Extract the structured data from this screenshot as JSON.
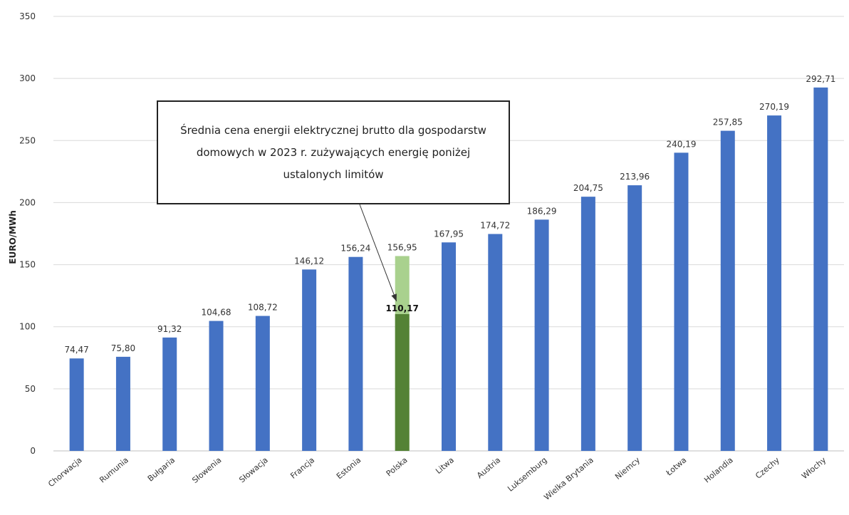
{
  "chart_data": {
    "type": "bar",
    "ylabel": "EURO/MWh",
    "ylim": [
      0,
      350
    ],
    "yticks": [
      "0",
      "50",
      "100",
      "150",
      "200",
      "250",
      "300",
      "350"
    ],
    "grid": true,
    "categories": [
      "Chorwacja",
      "Rumunia",
      "Bułgaria",
      "Słowenia",
      "Słowacja",
      "Francja",
      "Estonia",
      "Polska",
      "Litwa",
      "Austria",
      "Luksemburg",
      "Wielka Brytania",
      "Niemcy",
      "Łotwa",
      "Holandia",
      "Czechy",
      "Włochy"
    ],
    "values": [
      74.47,
      75.8,
      91.32,
      104.68,
      108.72,
      146.12,
      156.24,
      156.95,
      167.95,
      174.72,
      186.29,
      204.75,
      213.96,
      240.19,
      257.85,
      270.19,
      292.71
    ],
    "value_labels": [
      "74,47",
      "75,80",
      "91,32",
      "104,68",
      "108,72",
      "146,12",
      "156,24",
      "156,95",
      "167,95",
      "174,72",
      "186,29",
      "204,75",
      "213,96",
      "240,19",
      "257,85",
      "270,19",
      "292,71"
    ],
    "highlight": {
      "category": "Polska",
      "value": 110.17,
      "label": "110,17"
    },
    "colors": {
      "bar": "#4472c4",
      "highlight_total": "#a9d18e",
      "highlight_value": "#548235",
      "grid": "#d9d9d9"
    },
    "annotation": {
      "text": "Średnia cena energii elektrycznej brutto dla gospodarstw domowych w 2023 r. zużywających energię poniżej ustalonych limitów",
      "target_category": "Polska"
    }
  }
}
